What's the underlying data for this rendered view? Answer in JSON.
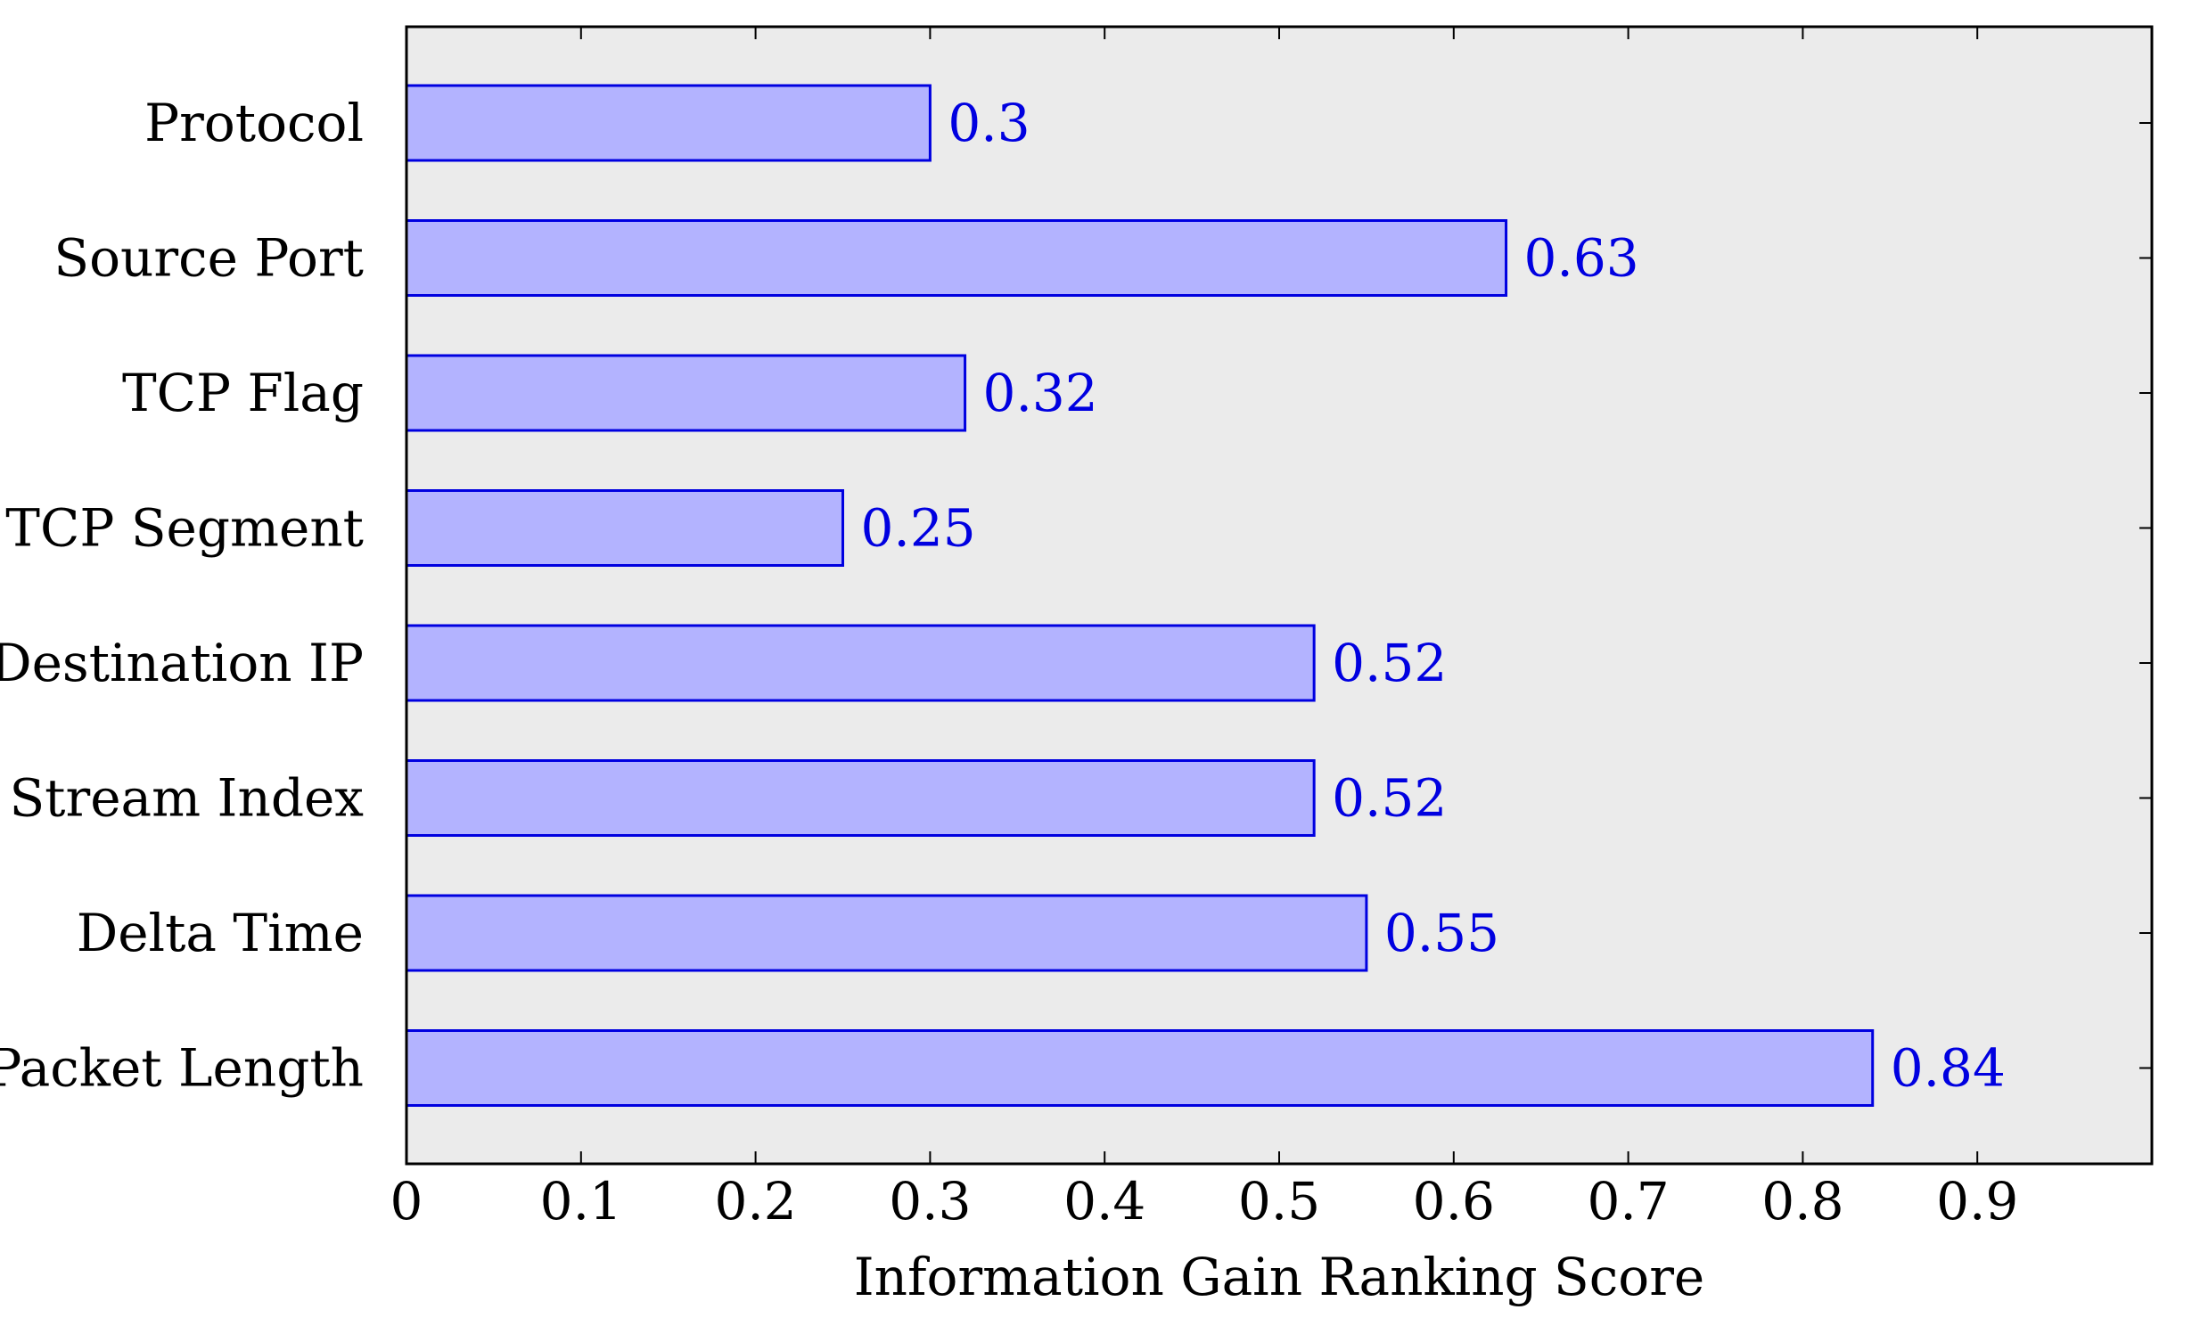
{
  "chart_data": {
    "type": "bar",
    "orientation": "horizontal",
    "categories": [
      "Protocol",
      "Source Port",
      "TCP Flag",
      "TCP Segment",
      "Destination IP",
      "Stream Index",
      "Delta Time",
      "Packet Length"
    ],
    "values": [
      0.3,
      0.63,
      0.32,
      0.25,
      0.52,
      0.52,
      0.55,
      0.84
    ],
    "value_labels": [
      "0.3",
      "0.63",
      "0.32",
      "0.25",
      "0.52",
      "0.52",
      "0.55",
      "0.84"
    ],
    "xlabel": "Information Gain Ranking Score",
    "ylabel": "",
    "xlim": [
      0,
      1
    ],
    "xticks": [
      0,
      0.1,
      0.2,
      0.3,
      0.4,
      0.5,
      0.6,
      0.7,
      0.8,
      0.9
    ],
    "xtick_labels": [
      "0",
      "0.1",
      "0.2",
      "0.3",
      "0.4",
      "0.5",
      "0.6",
      "0.7",
      "0.8",
      "0.9"
    ],
    "grid": false,
    "legend": "none",
    "colors": {
      "plot_background": "#ebebeb",
      "bar_fill": "#b3b3ff",
      "bar_stroke": "#0000e0",
      "value_label": "#0000e0",
      "axis": "#000000"
    }
  }
}
